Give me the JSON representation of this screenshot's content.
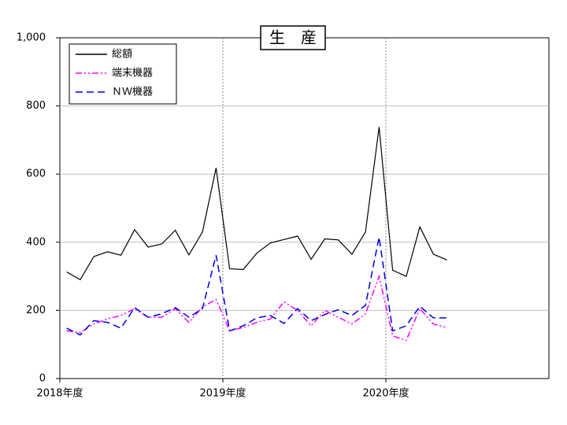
{
  "chart_data": {
    "type": "line",
    "title": "生　産",
    "categories": [
      "2018年度",
      null,
      null,
      null,
      null,
      null,
      null,
      null,
      null,
      null,
      null,
      null,
      "2019年度",
      null,
      null,
      null,
      null,
      null,
      null,
      null,
      null,
      null,
      null,
      null,
      "2020年度",
      null,
      null,
      null,
      null,
      null,
      null,
      null,
      null,
      null,
      null,
      null
    ],
    "series": [
      {
        "name": "総額",
        "color": "#000000",
        "dash": "none",
        "values": [
          313,
          290,
          358,
          372,
          362,
          437,
          386,
          395,
          435,
          363,
          430,
          618,
          322,
          320,
          368,
          398,
          408,
          418,
          350,
          410,
          407,
          365,
          430,
          738,
          318,
          300,
          445,
          365,
          348,
          null,
          null,
          null,
          null,
          null,
          null,
          null
        ]
      },
      {
        "name": "端末機器",
        "color": "#ff00ff",
        "dash": "8 3 2 3 2 3",
        "values": [
          140,
          135,
          160,
          175,
          185,
          205,
          180,
          180,
          205,
          165,
          210,
          232,
          140,
          150,
          165,
          175,
          225,
          200,
          155,
          200,
          180,
          160,
          190,
          300,
          125,
          112,
          205,
          160,
          150,
          null,
          null,
          null,
          null,
          null,
          null,
          null
        ]
      },
      {
        "name": "ＮＷ機器",
        "color": "#0000dd",
        "dash": "9 5",
        "values": [
          148,
          128,
          170,
          165,
          148,
          208,
          180,
          190,
          208,
          180,
          205,
          362,
          140,
          155,
          178,
          185,
          162,
          205,
          170,
          188,
          202,
          185,
          215,
          415,
          140,
          155,
          212,
          178,
          178,
          null,
          null,
          null,
          null,
          null,
          null,
          null
        ]
      }
    ],
    "ylim": [
      0,
      1000
    ],
    "yticks": [
      0,
      200,
      400,
      600,
      800,
      {
        "value": 1000,
        "label": "1,000"
      }
    ],
    "grid": true
  }
}
